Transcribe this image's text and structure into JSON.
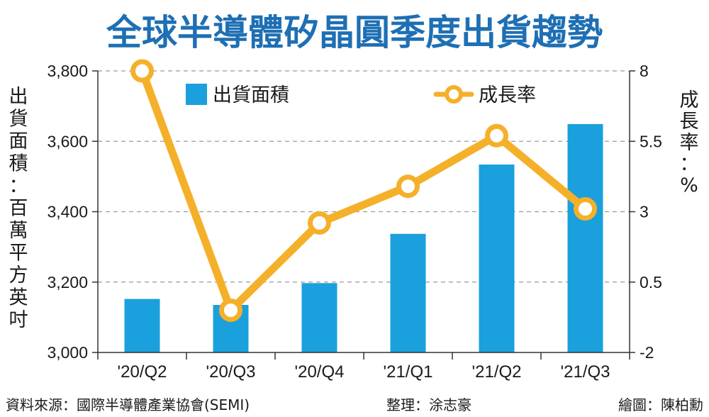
{
  "chart_data": {
    "type": "bar+line",
    "title": "全球半導體矽晶圓季度出貨趨勢",
    "categories": [
      "'20/Q2",
      "'20/Q3",
      "'20/Q4",
      "'21/Q1",
      "'21/Q2",
      "'21/Q3"
    ],
    "series": [
      {
        "name": "出貨面積",
        "type": "bar",
        "axis": "left",
        "color": "#1aa0dc",
        "values": [
          3152,
          3135,
          3197,
          3337,
          3534,
          3649
        ]
      },
      {
        "name": "成長率",
        "type": "line",
        "axis": "right",
        "color": "#f5b02a",
        "values": [
          8.0,
          -0.5,
          2.6,
          3.9,
          5.7,
          3.1
        ]
      }
    ],
    "ylabel": "出貨面積：百萬平方英吋",
    "y2label": "成長率：%",
    "ylim": [
      3000,
      3800
    ],
    "y2lim": [
      -2,
      8
    ],
    "yticks": [
      "3,000",
      "3,200",
      "3,400",
      "3,600",
      "3,800"
    ],
    "y2ticks": [
      "-2",
      "0.5",
      "3",
      "5.5",
      "8"
    ],
    "grid": true,
    "legend": "top"
  },
  "footer": {
    "source": "資料來源：國際半導體產業協會(SEMI)",
    "editor": "整理：涂志豪",
    "artist": "繪圖：陳柏勳"
  },
  "colors": {
    "title": "#1e6fb4",
    "bar": "#1aa0dc",
    "line": "#f5b02a",
    "grid": "#9a9a9a"
  }
}
